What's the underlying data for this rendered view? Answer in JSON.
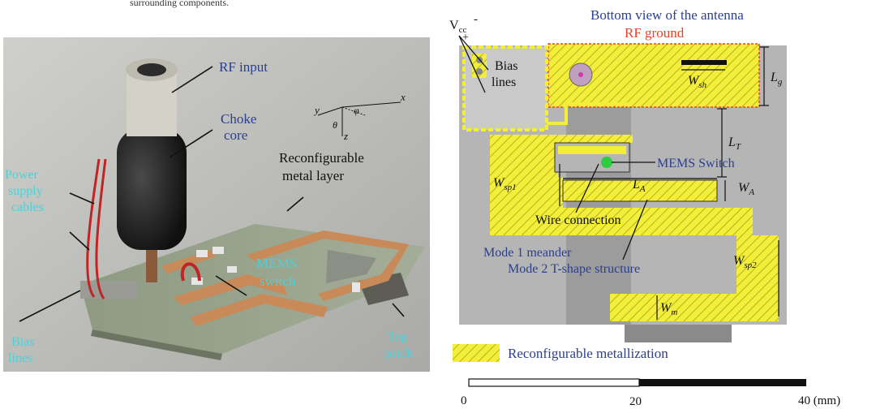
{
  "caption_fragment": "surrounding components.",
  "photo": {
    "rf_input": "RF input",
    "choke_core": "Choke",
    "choke_core_2": "core",
    "reconfigurable_layer": "Reconfigurable",
    "reconfigurable_layer_2": "metal layer",
    "power_cables": "Power",
    "power_cables_2": "supply",
    "power_cables_3": "cables",
    "mems_switch": "MEMS",
    "mems_switch_2": "switch",
    "bias_lines": "Bias",
    "bias_lines_2": "lines",
    "top_patch": "Top",
    "top_patch_2": "patch",
    "axis_x": "x",
    "axis_y": "y",
    "axis_z": "z",
    "axis_theta": "θ",
    "axis_phi": "φ"
  },
  "diagram": {
    "title": "Bottom view of the antenna",
    "rf_ground": "RF ground",
    "vcc": "V",
    "vcc_sub": "cc",
    "vcc_minus": "-",
    "vcc_plus": "+",
    "bias": "Bias",
    "lines": "lines",
    "wsh": "W",
    "wsh_sub": "sh",
    "lg": "L",
    "lg_sub": "g",
    "lt": "L",
    "lt_sub": "T",
    "mems_switch": "MEMS Switch",
    "wsp1": "W",
    "wsp1_sub": "sp1",
    "la": "L",
    "la_sub": "A",
    "wa": "W",
    "wa_sub": "A",
    "wire_connection": "Wire connection",
    "mode1": "Mode 1 meander",
    "mode2": "Mode 2 T-shape structure",
    "wsp2": "W",
    "wsp2_sub": "sp2",
    "wm": "W",
    "wm_sub": "m",
    "legend_label": "Reconfigurable metallization",
    "scale_0": "0",
    "scale_20": "20",
    "scale_40": "40 (mm)"
  },
  "colors": {
    "metal_yellow": "#f2ee3a",
    "substrate_gray": "#b5b5b5",
    "label_blue": "#2a3f8f",
    "label_cyan": "#4fd0d8",
    "rf_ground_red": "#e8412a"
  }
}
